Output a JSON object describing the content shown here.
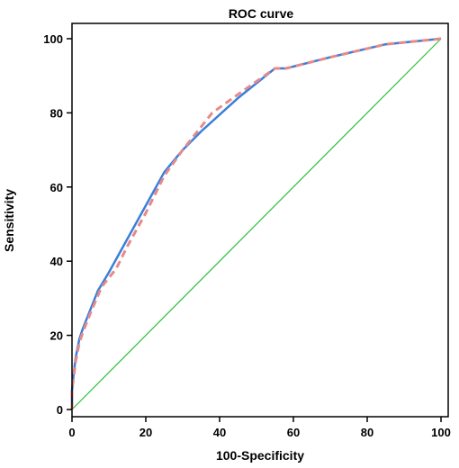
{
  "chart_data": {
    "type": "line",
    "title": "ROC curve",
    "xlabel": "100-Specificity",
    "ylabel": "Sensitivity",
    "xlim": [
      0,
      100
    ],
    "ylim": [
      0,
      100
    ],
    "xticks": [
      0,
      20,
      40,
      60,
      80,
      100
    ],
    "yticks": [
      0,
      20,
      40,
      60,
      80,
      100
    ],
    "grid": false,
    "series": [
      {
        "color": "#3a7fd9",
        "style": "solid",
        "x": [
          0,
          0,
          0.5,
          1,
          2,
          3,
          5,
          7,
          10,
          15,
          20,
          25,
          30,
          35,
          45,
          55,
          58,
          70,
          85,
          100
        ],
        "y": [
          0,
          5,
          10,
          14,
          19,
          22,
          27,
          32,
          37,
          46,
          55,
          64,
          70,
          75,
          84,
          92,
          92,
          95,
          98.5,
          100
        ]
      },
      {
        "color": "#e58a8a",
        "style": "dashed",
        "x": [
          0,
          0,
          0.5,
          1,
          2,
          3,
          5,
          8,
          12,
          15,
          20,
          25,
          30,
          34,
          38,
          45,
          55,
          58,
          70,
          85,
          100
        ],
        "y": [
          0,
          5,
          9,
          13,
          18,
          21,
          26,
          33,
          38,
          44,
          53,
          63,
          70,
          75,
          80,
          85,
          92,
          92,
          95,
          98.5,
          100
        ]
      },
      {
        "color": "#2dbf3a",
        "style": "solid",
        "x": [
          0,
          100
        ],
        "y": [
          0,
          100
        ]
      }
    ]
  }
}
